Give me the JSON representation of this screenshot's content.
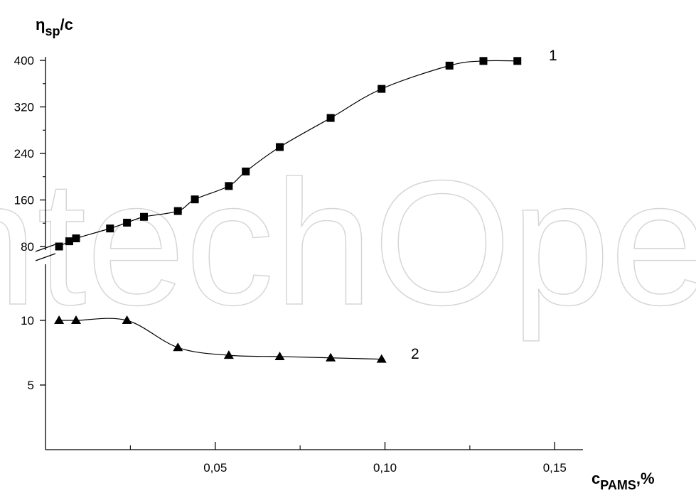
{
  "watermark": "IntechOpen",
  "chart_data": {
    "type": "scatter",
    "title": "",
    "ylabel": {
      "main": "η",
      "sub": "sp",
      "tail": "/c"
    },
    "xlabel": {
      "main": "c",
      "sub": "PAMS",
      "tail": ",%"
    },
    "xlim": [
      0.0,
      0.155
    ],
    "x_ticks": [
      {
        "value": 0.05,
        "label": "0,05"
      },
      {
        "value": 0.1,
        "label": "0,10"
      },
      {
        "value": 0.15,
        "label": "0,15"
      }
    ],
    "y_axis_broken": true,
    "y_segments": [
      {
        "name": "upper",
        "range": [
          80,
          400
        ],
        "ticks": [
          {
            "value": 80,
            "label": "80"
          },
          {
            "value": 160,
            "label": "160"
          },
          {
            "value": 240,
            "label": "240"
          },
          {
            "value": 320,
            "label": "320"
          },
          {
            "value": 400,
            "label": "400"
          }
        ]
      },
      {
        "name": "lower",
        "range": [
          0,
          12.5
        ],
        "ticks": [
          {
            "value": 5,
            "label": "5"
          },
          {
            "value": 10,
            "label": "10"
          }
        ]
      }
    ],
    "grid": false,
    "legend": "none",
    "series": [
      {
        "name": "1",
        "segment": "upper",
        "marker": "square",
        "x": [
          0.004,
          0.007,
          0.009,
          0.019,
          0.024,
          0.029,
          0.039,
          0.044,
          0.054,
          0.059,
          0.069,
          0.084,
          0.099,
          0.119,
          0.129,
          0.139
        ],
        "y": [
          80,
          89,
          94,
          111,
          121,
          131,
          141,
          161,
          184,
          209,
          251,
          301,
          351,
          391,
          399,
          399
        ]
      },
      {
        "name": "2",
        "segment": "lower",
        "marker": "triangle",
        "x": [
          0.004,
          0.009,
          0.024,
          0.039,
          0.054,
          0.069,
          0.084,
          0.099
        ],
        "y": [
          10.0,
          10.0,
          10.0,
          7.9,
          7.3,
          7.2,
          7.1,
          7.0
        ]
      }
    ]
  }
}
